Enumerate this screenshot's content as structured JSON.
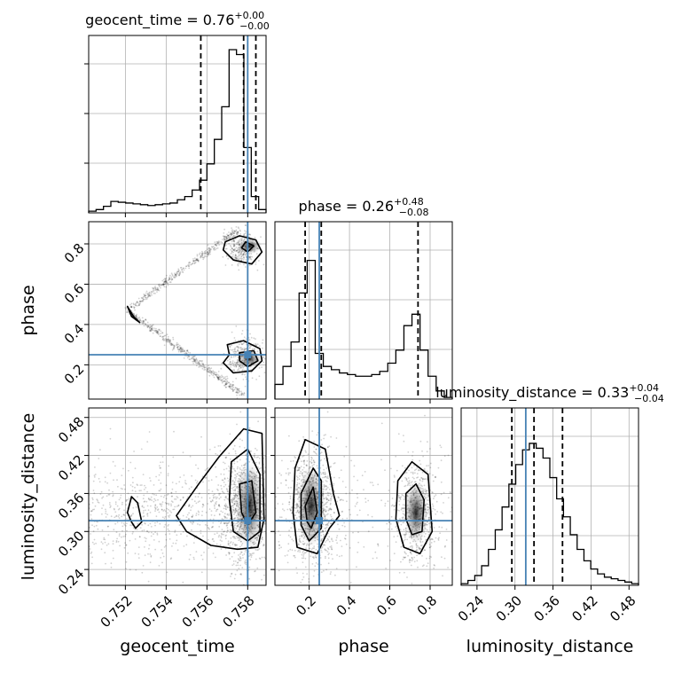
{
  "chart_data": {
    "type": "corner",
    "parameters": [
      "geocent_time",
      "phase",
      "luminosity_distance"
    ],
    "truths": {
      "geocent_time": 0.758,
      "phase": 0.25,
      "luminosity_distance": 0.317
    },
    "ranges": {
      "geocent_time": [
        0.7502,
        0.7589
      ],
      "phase": [
        0.03,
        0.91
      ],
      "luminosity_distance": [
        0.215,
        0.495
      ]
    },
    "ticks": {
      "geocent_time": [
        0.752,
        0.754,
        0.756,
        0.758
      ],
      "phase": [
        0.2,
        0.4,
        0.6,
        0.8
      ],
      "luminosity_distance": [
        0.24,
        0.3,
        0.36,
        0.42,
        0.48
      ]
    },
    "tick_labels": {
      "geocent_time": [
        "0.752",
        "0.754",
        "0.756",
        "0.758"
      ],
      "phase": [
        "0.2",
        "0.4",
        "0.6",
        "0.8"
      ],
      "luminosity_distance": [
        "0.24",
        "0.30",
        "0.36",
        "0.42",
        "0.48"
      ]
    },
    "titles": {
      "geocent_time": {
        "label": "geocent_time = 0.76",
        "plus": "+0.00",
        "minus": "−0.00"
      },
      "phase": {
        "label": "phase = 0.26",
        "plus": "+0.48",
        "minus": "−0.08"
      },
      "luminosity_distance": {
        "label": "luminosity_distance = 0.33",
        "plus": "+0.04",
        "minus": "−0.04"
      }
    },
    "quantiles": {
      "geocent_time": [
        0.7557,
        0.7578,
        0.7584
      ],
      "phase": [
        0.18,
        0.26,
        0.74
      ],
      "luminosity_distance": [
        0.295,
        0.33,
        0.375
      ]
    },
    "histograms": {
      "geocent_time": [
        0.01,
        0.02,
        0.04,
        0.07,
        0.065,
        0.06,
        0.055,
        0.05,
        0.045,
        0.05,
        0.055,
        0.06,
        0.08,
        0.1,
        0.14,
        0.2,
        0.3,
        0.45,
        0.65,
        1.0,
        0.97,
        0.4,
        0.1,
        0.02
      ],
      "phase": [
        0.09,
        0.2,
        0.35,
        0.65,
        0.85,
        0.28,
        0.2,
        0.18,
        0.16,
        0.15,
        0.14,
        0.14,
        0.15,
        0.17,
        0.22,
        0.3,
        0.45,
        0.52,
        0.3,
        0.14,
        0.05,
        0.01
      ],
      "luminosity_distance": [
        0.01,
        0.03,
        0.06,
        0.12,
        0.22,
        0.34,
        0.48,
        0.62,
        0.74,
        0.83,
        0.87,
        0.84,
        0.78,
        0.66,
        0.53,
        0.42,
        0.31,
        0.22,
        0.15,
        0.1,
        0.07,
        0.05,
        0.04,
        0.03,
        0.02,
        0.01
      ]
    },
    "contours": {
      "phase_vs_geocent_time": [
        [
          [
            0.7569,
            0.81
          ],
          [
            0.7576,
            0.84
          ],
          [
            0.7584,
            0.82
          ],
          [
            0.7587,
            0.76
          ],
          [
            0.7582,
            0.7
          ],
          [
            0.7573,
            0.72
          ],
          [
            0.7568,
            0.77
          ]
        ],
        [
          [
            0.7579,
            0.81
          ],
          [
            0.7583,
            0.79
          ],
          [
            0.758,
            0.76
          ],
          [
            0.7577,
            0.78
          ]
        ],
        [
          [
            0.757,
            0.3
          ],
          [
            0.7578,
            0.32
          ],
          [
            0.7586,
            0.28
          ],
          [
            0.7587,
            0.22
          ],
          [
            0.7582,
            0.17
          ],
          [
            0.7573,
            0.16
          ],
          [
            0.7568,
            0.21
          ],
          [
            0.7571,
            0.25
          ]
        ],
        [
          [
            0.7576,
            0.26
          ],
          [
            0.7583,
            0.27
          ],
          [
            0.7585,
            0.22
          ],
          [
            0.758,
            0.19
          ],
          [
            0.7576,
            0.22
          ]
        ],
        [
          [
            0.7521,
            0.49
          ],
          [
            0.7524,
            0.44
          ],
          [
            0.7527,
            0.41
          ],
          [
            0.7523,
            0.44
          ]
        ]
      ],
      "luminosity_distance_vs_geocent_time": [
        [
          [
            0.7523,
            0.355
          ],
          [
            0.7526,
            0.345
          ],
          [
            0.7528,
            0.315
          ],
          [
            0.7525,
            0.305
          ],
          [
            0.7523,
            0.315
          ],
          [
            0.7521,
            0.33
          ]
        ],
        [
          [
            0.7556,
            0.375
          ],
          [
            0.7566,
            0.418
          ],
          [
            0.7578,
            0.462
          ],
          [
            0.7587,
            0.455
          ],
          [
            0.7588,
            0.32
          ],
          [
            0.7585,
            0.275
          ],
          [
            0.7575,
            0.272
          ],
          [
            0.7562,
            0.278
          ],
          [
            0.755,
            0.3
          ],
          [
            0.7545,
            0.325
          ]
        ],
        [
          [
            0.7572,
            0.41
          ],
          [
            0.758,
            0.43
          ],
          [
            0.7586,
            0.39
          ],
          [
            0.7586,
            0.3
          ],
          [
            0.758,
            0.285
          ],
          [
            0.7573,
            0.3
          ],
          [
            0.7571,
            0.35
          ]
        ],
        [
          [
            0.7576,
            0.375
          ],
          [
            0.7582,
            0.38
          ],
          [
            0.7584,
            0.33
          ],
          [
            0.758,
            0.31
          ],
          [
            0.7577,
            0.33
          ]
        ]
      ],
      "luminosity_distance_vs_phase": [
        [
          [
            0.13,
            0.4
          ],
          [
            0.18,
            0.445
          ],
          [
            0.28,
            0.43
          ],
          [
            0.32,
            0.36
          ],
          [
            0.35,
            0.325
          ],
          [
            0.3,
            0.305
          ],
          [
            0.24,
            0.265
          ],
          [
            0.14,
            0.275
          ],
          [
            0.12,
            0.33
          ]
        ],
        [
          [
            0.16,
            0.36
          ],
          [
            0.22,
            0.4
          ],
          [
            0.26,
            0.38
          ],
          [
            0.26,
            0.305
          ],
          [
            0.2,
            0.285
          ],
          [
            0.16,
            0.31
          ]
        ],
        [
          [
            0.18,
            0.34
          ],
          [
            0.22,
            0.37
          ],
          [
            0.24,
            0.33
          ],
          [
            0.21,
            0.305
          ],
          [
            0.19,
            0.315
          ]
        ],
        [
          [
            0.64,
            0.38
          ],
          [
            0.71,
            0.41
          ],
          [
            0.79,
            0.39
          ],
          [
            0.81,
            0.3
          ],
          [
            0.75,
            0.265
          ],
          [
            0.67,
            0.275
          ],
          [
            0.63,
            0.32
          ]
        ],
        [
          [
            0.68,
            0.36
          ],
          [
            0.73,
            0.375
          ],
          [
            0.77,
            0.35
          ],
          [
            0.76,
            0.3
          ],
          [
            0.71,
            0.295
          ],
          [
            0.68,
            0.32
          ]
        ]
      ]
    },
    "grid": true,
    "truth_color": "#4682b4",
    "line_color": "#000000",
    "grid_color": "#b0b0b0"
  }
}
